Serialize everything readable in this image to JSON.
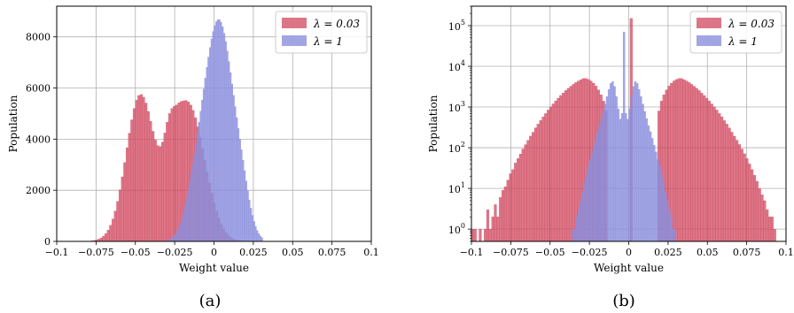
{
  "colors": {
    "red": "#d0485f",
    "blue": "#8b8fdd",
    "grid": "#b0b0b0"
  },
  "captions": {
    "a": "(a)",
    "b": "(b)"
  },
  "chart_data": [
    {
      "id": "a",
      "type": "bar",
      "scale": "linear",
      "xlabel": "Weight value",
      "ylabel": "Population",
      "xlim": [
        -0.1,
        0.1
      ],
      "ylim": [
        0,
        9200
      ],
      "grid": true,
      "legend_position": "top-right",
      "xticks": [
        -0.1,
        -0.075,
        -0.05,
        -0.025,
        0,
        0.025,
        0.05,
        0.075,
        0.1
      ],
      "xtick_labels": [
        "−0.1",
        "−0.075",
        "−0.05",
        "−0.025",
        "0",
        "0.025",
        "0.05",
        "0.075",
        "0.1"
      ],
      "yticks": [
        0,
        2000,
        4000,
        6000,
        8000
      ],
      "ytick_labels": [
        "0",
        "2000",
        "4000",
        "6000",
        "8000"
      ],
      "series": [
        {
          "name": "λ = 0.03",
          "color": "#d0485f",
          "opacity": 0.75,
          "bin_start": -0.08,
          "bin_width": 0.0015,
          "values": [
            12,
            20,
            34,
            55,
            87,
            135,
            205,
            305,
            443,
            630,
            875,
            1185,
            1565,
            2013,
            2525,
            3083,
            3663,
            4232,
            4756,
            5197,
            5521,
            5707,
            5746,
            5642,
            5412,
            5084,
            4698,
            4307,
            3969,
            3749,
            3710,
            3886,
            4240,
            4658,
            5000,
            5200,
            5288,
            5339,
            5424,
            5475,
            5498,
            5515,
            5456,
            5331,
            5125,
            4838,
            4480,
            4068,
            3624,
            3168,
            2716,
            2280,
            1873,
            1503,
            1176,
            897,
            667,
            484,
            342,
            235,
            158,
            103,
            66,
            41,
            25,
            15,
            9,
            5,
            3,
            2
          ]
        },
        {
          "name": "λ = 1",
          "color": "#8b8fdd",
          "opacity": 0.8,
          "bin_start": -0.03,
          "bin_width": 0.001,
          "values": [
            37,
            58,
            89,
            134,
            196,
            280,
            390,
            528,
            697,
            898,
            1131,
            1394,
            1684,
            1997,
            2330,
            2680,
            3046,
            3428,
            3826,
            4238,
            4662,
            5094,
            5530,
            5964,
            6393,
            6810,
            7210,
            7583,
            7920,
            8210,
            8440,
            8599,
            8678,
            8670,
            8574,
            8395,
            8141,
            7821,
            7448,
            7037,
            6603,
            6158,
            5712,
            5273,
            4842,
            4420,
            4003,
            3589,
            3176,
            2766,
            2364,
            1980,
            1623,
            1301,
            1020,
            781,
            584,
            427,
            304,
            212,
            144
          ]
        }
      ]
    },
    {
      "id": "b",
      "type": "bar",
      "scale": "log",
      "xlabel": "Weight value",
      "ylabel": "Population",
      "xlim": [
        -0.1,
        0.1
      ],
      "ylim": [
        0.5,
        300000
      ],
      "grid": true,
      "legend_position": "top-right",
      "xticks": [
        -0.1,
        -0.075,
        -0.05,
        -0.025,
        0,
        0.025,
        0.05,
        0.075,
        0.1
      ],
      "xtick_labels": [
        "−0.1",
        "−0.075",
        "−0.05",
        "−0.025",
        "0",
        "0.025",
        "0.05",
        "0.075",
        "0.1"
      ],
      "yticks": [
        1,
        10,
        100,
        1000,
        10000,
        100000
      ],
      "ytick_labels": [
        {
          "base": "10",
          "exp": "0"
        },
        {
          "base": "10",
          "exp": "1"
        },
        {
          "base": "10",
          "exp": "2"
        },
        {
          "base": "10",
          "exp": "3"
        },
        {
          "base": "10",
          "exp": "4"
        },
        {
          "base": "10",
          "exp": "5"
        }
      ],
      "series": [
        {
          "name": "λ = 0.03",
          "color": "#d0485f",
          "opacity": 0.75,
          "bin_start": -0.1,
          "bin_width": 0.0016,
          "values": [
            1,
            1,
            0,
            1,
            0,
            1,
            3,
            1,
            2,
            4,
            2,
            6,
            9,
            11,
            16,
            23,
            29,
            42,
            54,
            70,
            93,
            119,
            152,
            193,
            240,
            308,
            380,
            466,
            573,
            692,
            844,
            1004,
            1192,
            1412,
            1652,
            1918,
            2206,
            2538,
            2874,
            3231,
            3605,
            3987,
            4366,
            4705,
            5000,
            5000,
            4756,
            4380,
            3856,
            3268,
            2623,
            1992,
            1395,
            815,
            0,
            0,
            0,
            0,
            0,
            0,
            0,
            0,
            0,
            150000,
            0,
            0,
            0,
            0,
            0,
            0,
            0,
            0,
            0,
            0,
            800,
            1398,
            1993,
            2631,
            3271,
            3853,
            4380,
            4755,
            5000,
            5000,
            4710,
            4367,
            3991,
            3602,
            3230,
            2876,
            2539,
            2203,
            1915,
            1648,
            1413,
            1190,
            1006,
            846,
            693,
            575,
            464,
            382,
            307,
            241,
            192,
            153,
            120,
            93,
            71,
            54,
            40,
            29,
            21,
            15,
            10,
            7,
            5,
            3,
            2,
            2,
            1
          ]
        },
        {
          "name": "λ = 1",
          "color": "#8b8fdd",
          "opacity": 0.8,
          "bin_start": -0.036,
          "bin_width": 0.0012,
          "values": [
            1,
            1,
            2,
            3,
            5,
            8,
            14,
            22,
            35,
            52,
            79,
            115,
            170,
            248,
            350,
            520,
            780,
            1180,
            1800,
            2700,
            3800,
            4200,
            3200,
            1800,
            900,
            500,
            700,
            70000,
            700,
            500,
            900,
            1800,
            3200,
            4200,
            3800,
            2700,
            1800,
            1180,
            780,
            520,
            350,
            248,
            170,
            115,
            79,
            52,
            35,
            22,
            14,
            8,
            5,
            3,
            2,
            1,
            1
          ]
        }
      ]
    }
  ]
}
